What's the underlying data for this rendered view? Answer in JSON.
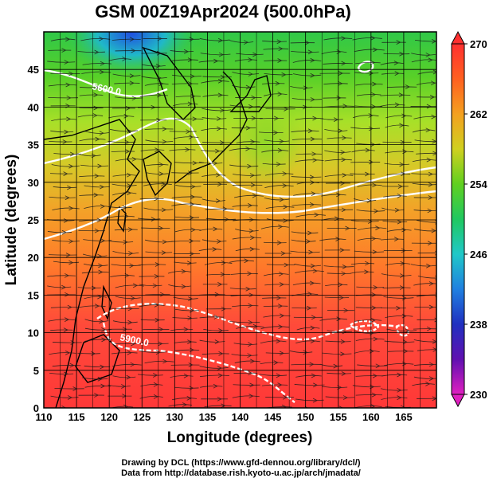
{
  "title": "GSM 00Z19Apr2024 (500.0hPa)",
  "xlabel": "Longitude (degrees)",
  "ylabel": "Latitude  (degrees)",
  "xticks": [
    "110",
    "115",
    "120",
    "125",
    "130",
    "135",
    "140",
    "145",
    "150",
    "155",
    "160",
    "165"
  ],
  "yticks": [
    "0",
    "5",
    "10",
    "15",
    "20",
    "25",
    "30",
    "35",
    "40",
    "45"
  ],
  "colorbar": {
    "ticks": [
      "270",
      "262",
      "254",
      "246",
      "238",
      "230"
    ],
    "colors": [
      "#ff3030",
      "#ff7020",
      "#f0a020",
      "#d8d020",
      "#a0e020",
      "#40d020",
      "#20c890",
      "#20a0e0",
      "#2040d0",
      "#4010b0",
      "#e020c0"
    ]
  },
  "contour_labels": [
    "5600.0",
    "5900.0"
  ],
  "credits": [
    "Drawing by DCL (https://www.gfd-dennou.org/library/dcl/)",
    "Data from http://database.rish.kyoto-u.ac.jp/arch/jmadata/"
  ],
  "chart_data": {
    "type": "heatmap",
    "title": "GSM 00Z19Apr2024 (500.0hPa)",
    "xlabel": "Longitude (degrees)",
    "ylabel": "Latitude  (degrees)",
    "xlim": [
      110,
      170
    ],
    "ylim": [
      0,
      50
    ],
    "color_range": [
      230,
      270
    ],
    "colorbar_ticks": [
      270,
      262,
      254,
      246,
      238,
      230
    ],
    "contour_levels": [
      5600,
      5900
    ],
    "grid": true
  }
}
